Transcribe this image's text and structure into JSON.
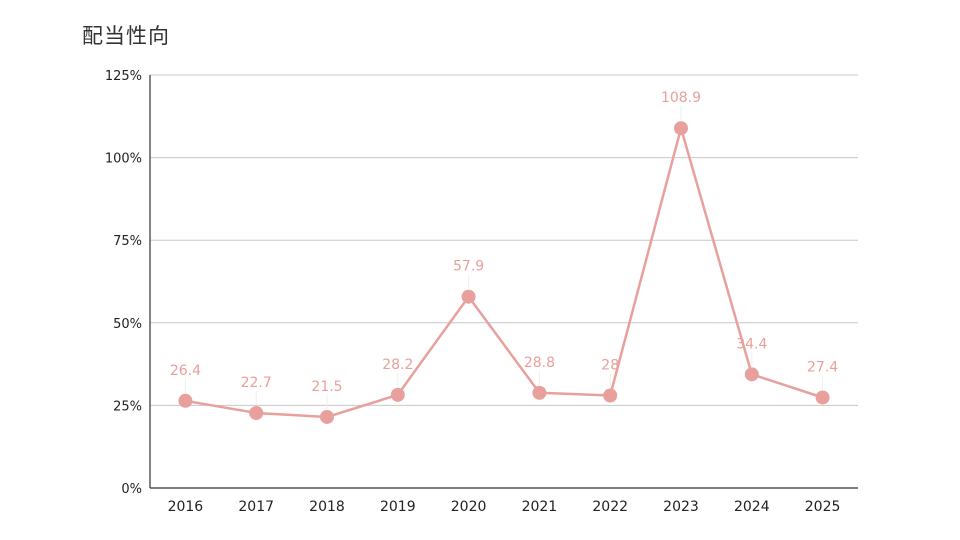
{
  "chart_data": {
    "type": "line",
    "title": "配当性向",
    "xlabel": "",
    "ylabel": "",
    "categories": [
      "2016",
      "2017",
      "2018",
      "2019",
      "2020",
      "2021",
      "2022",
      "2023",
      "2024",
      "2025"
    ],
    "series": [
      {
        "values": [
          26.4,
          22.7,
          21.5,
          28.2,
          57.9,
          28.8,
          28,
          108.9,
          34.4,
          27.4
        ],
        "labels": [
          "26.4",
          "22.7",
          "21.5",
          "28.2",
          "57.9",
          "28.8",
          "28",
          "108.9",
          "34.4",
          "27.4"
        ],
        "color": "#e8a09c"
      }
    ],
    "ylim": [
      0,
      125
    ],
    "yticks": [
      0,
      25,
      50,
      75,
      100,
      125
    ],
    "ytick_labels": [
      "0%",
      "25%",
      "50%",
      "75%",
      "100%",
      "125%"
    ],
    "grid": true,
    "legend": "none"
  },
  "colors": {
    "series": "#e8a09c",
    "grid": "#c8c8c8",
    "axis": "#333333"
  }
}
